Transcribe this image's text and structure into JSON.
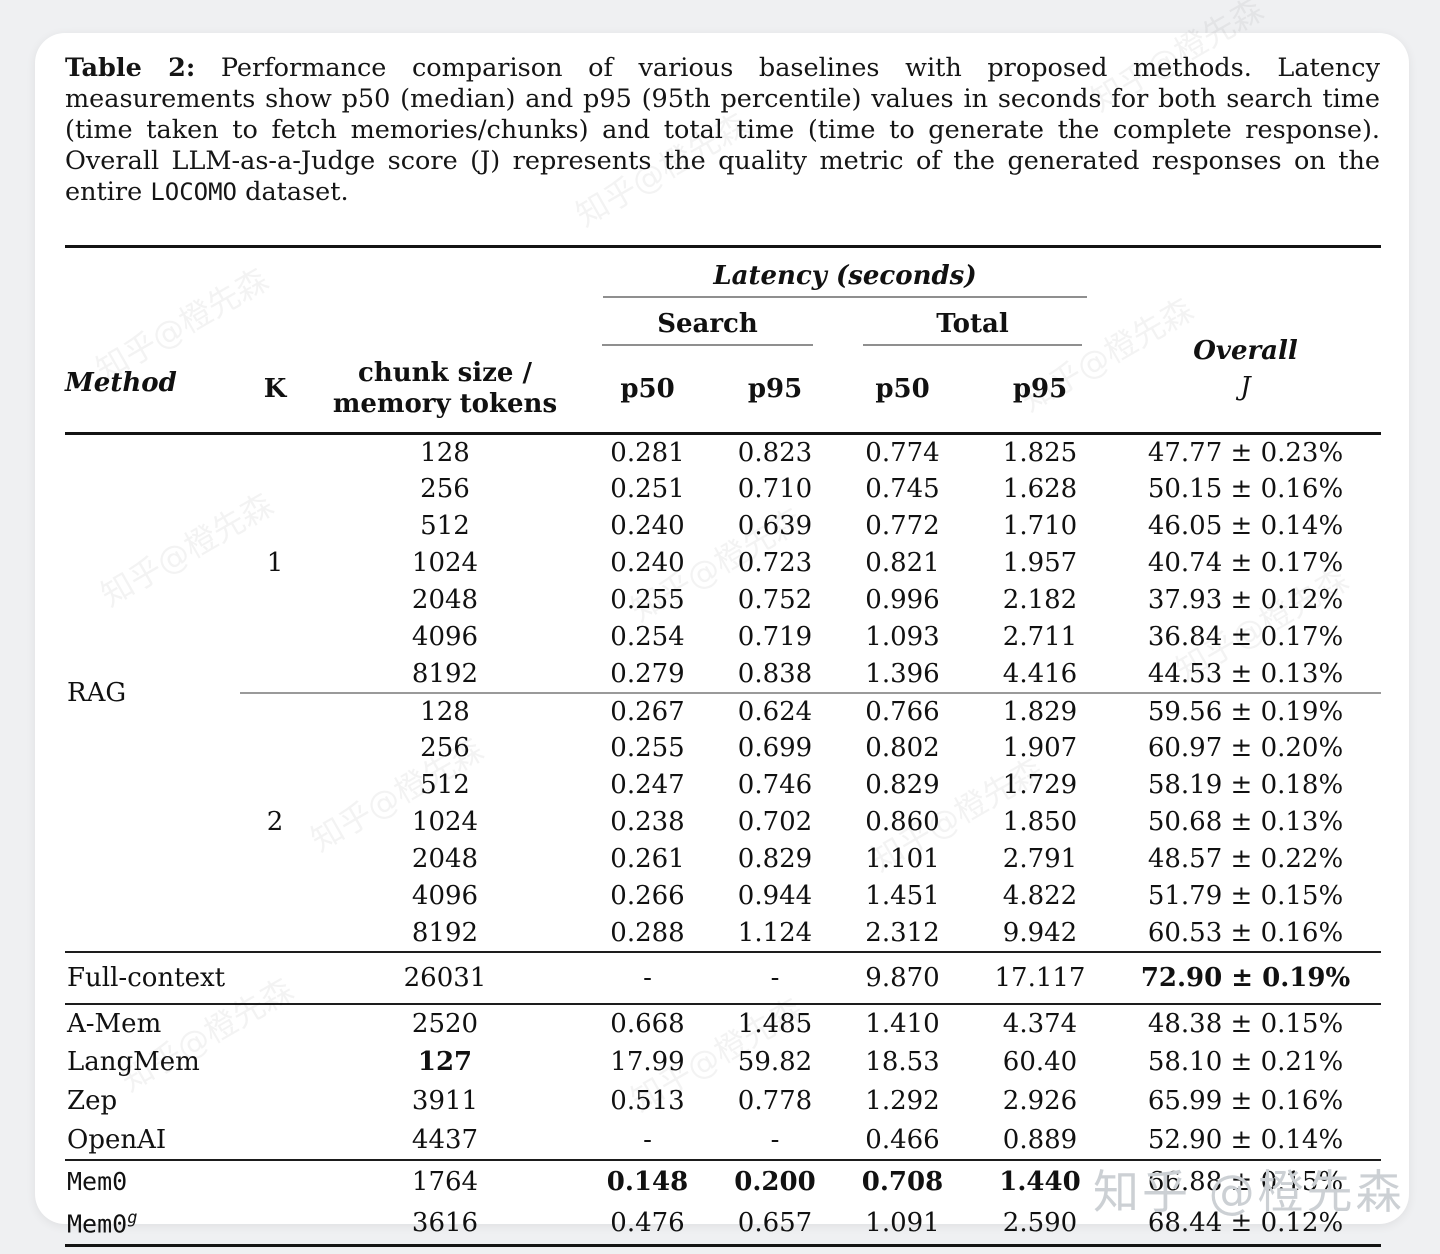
{
  "page": {
    "background": "#eff0f2",
    "card_background": "#ffffff"
  },
  "caption": {
    "label": "Table 2:",
    "text_before_locomo": " Performance comparison of various baselines with proposed methods. Latency measurements show p50 (median) and p95 (95th percentile) values in seconds for both search time (time taken to fetch memories/chunks) and total time (time to generate the complete response). Overall LLM-as-a-Judge score (J) represents the quality metric of the generated responses on the entire ",
    "locomo": "LOCOMO",
    "text_after_locomo": " dataset."
  },
  "table": {
    "headers": {
      "method": "Method",
      "latency_group": "Latency (seconds)",
      "search": "Search",
      "total": "Total",
      "overall_line1": "Overall",
      "overall_line2": "J",
      "k": "K",
      "chunk_line1": "chunk size /",
      "chunk_line2": "memory tokens",
      "search_p50": "p50",
      "search_p95": "p95",
      "total_p50": "p50",
      "total_p95": "p95"
    },
    "rag": {
      "label": "RAG",
      "groups": [
        {
          "k": "1",
          "rows": [
            [
              "128",
              "0.281",
              "0.823",
              "0.774",
              "1.825",
              "47.77 ± 0.23%"
            ],
            [
              "256",
              "0.251",
              "0.710",
              "0.745",
              "1.628",
              "50.15 ± 0.16%"
            ],
            [
              "512",
              "0.240",
              "0.639",
              "0.772",
              "1.710",
              "46.05 ± 0.14%"
            ],
            [
              "1024",
              "0.240",
              "0.723",
              "0.821",
              "1.957",
              "40.74 ± 0.17%"
            ],
            [
              "2048",
              "0.255",
              "0.752",
              "0.996",
              "2.182",
              "37.93 ± 0.12%"
            ],
            [
              "4096",
              "0.254",
              "0.719",
              "1.093",
              "2.711",
              "36.84 ± 0.17%"
            ],
            [
              "8192",
              "0.279",
              "0.838",
              "1.396",
              "4.416",
              "44.53 ± 0.13%"
            ]
          ]
        },
        {
          "k": "2",
          "rows": [
            [
              "128",
              "0.267",
              "0.624",
              "0.766",
              "1.829",
              "59.56 ± 0.19%"
            ],
            [
              "256",
              "0.255",
              "0.699",
              "0.802",
              "1.907",
              "60.97 ± 0.20%"
            ],
            [
              "512",
              "0.247",
              "0.746",
              "0.829",
              "1.729",
              "58.19 ± 0.18%"
            ],
            [
              "1024",
              "0.238",
              "0.702",
              "0.860",
              "1.850",
              "50.68 ± 0.13%"
            ],
            [
              "2048",
              "0.261",
              "0.829",
              "1.101",
              "2.791",
              "48.57 ± 0.22%"
            ],
            [
              "4096",
              "0.266",
              "0.944",
              "1.451",
              "4.822",
              "51.79 ± 0.15%"
            ],
            [
              "8192",
              "0.288",
              "1.124",
              "2.312",
              "9.942",
              "60.53 ± 0.16%"
            ]
          ]
        }
      ]
    },
    "sections": [
      {
        "row_class": "fullctx-row",
        "rows": [
          {
            "method": "Full-context",
            "mono": false,
            "chunk": "26031",
            "s50": "-",
            "s95": "-",
            "t50": "9.870",
            "t95": "17.117",
            "j": "72.90 ± 0.19%",
            "bold": [
              "j"
            ]
          }
        ]
      },
      {
        "row_class": "baseline-row",
        "rows": [
          {
            "method": "A-Mem",
            "mono": false,
            "chunk": "2520",
            "s50": "0.668",
            "s95": "1.485",
            "t50": "1.410",
            "t95": "4.374",
            "j": "48.38 ± 0.15%",
            "bold": []
          },
          {
            "method": "LangMem",
            "mono": false,
            "chunk": "127",
            "s50": "17.99",
            "s95": "59.82",
            "t50": "18.53",
            "t95": "60.40",
            "j": "58.10 ± 0.21%",
            "bold": [
              "chunk"
            ]
          },
          {
            "method": "Zep",
            "mono": false,
            "chunk": "3911",
            "s50": "0.513",
            "s95": "0.778",
            "t50": "1.292",
            "t95": "2.926",
            "j": "65.99 ± 0.16%",
            "bold": []
          },
          {
            "method": "OpenAI",
            "mono": false,
            "chunk": "4437",
            "s50": "-",
            "s95": "-",
            "t50": "0.466",
            "t95": "0.889",
            "j": "52.90 ± 0.14%",
            "bold": []
          }
        ]
      },
      {
        "row_class": "mem-row",
        "rows": [
          {
            "method": "Mem0",
            "mono": true,
            "chunk": "1764",
            "s50": "0.148",
            "s95": "0.200",
            "t50": "0.708",
            "t95": "1.440",
            "j": "66.88 ± 0.15%",
            "bold": [
              "s50",
              "s95",
              "t50",
              "t95"
            ]
          },
          {
            "method": "Mem0",
            "sup": "g",
            "mono": true,
            "chunk": "3616",
            "s50": "0.476",
            "s95": "0.657",
            "t50": "1.091",
            "t95": "2.590",
            "j": "68.44 ± 0.12%",
            "bold": []
          }
        ]
      }
    ]
  },
  "watermark": {
    "text": "知乎 @橙先森",
    "tiled_text": "知乎@橙先森"
  }
}
